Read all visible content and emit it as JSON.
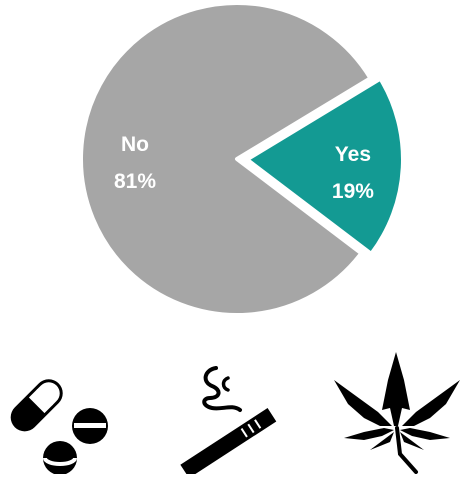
{
  "chart_data": {
    "type": "pie",
    "slices": [
      {
        "label": "Yes",
        "value": 19,
        "value_label": "19%",
        "color": "#139A93"
      },
      {
        "label": "No",
        "value": 81,
        "value_label": "81%",
        "color": "#A6A6A6"
      }
    ],
    "exploded_slice": "Yes",
    "legend": "none"
  },
  "icons": [
    {
      "name": "pills-icon"
    },
    {
      "name": "cigarette-icon"
    },
    {
      "name": "cannabis-leaf-icon"
    }
  ]
}
